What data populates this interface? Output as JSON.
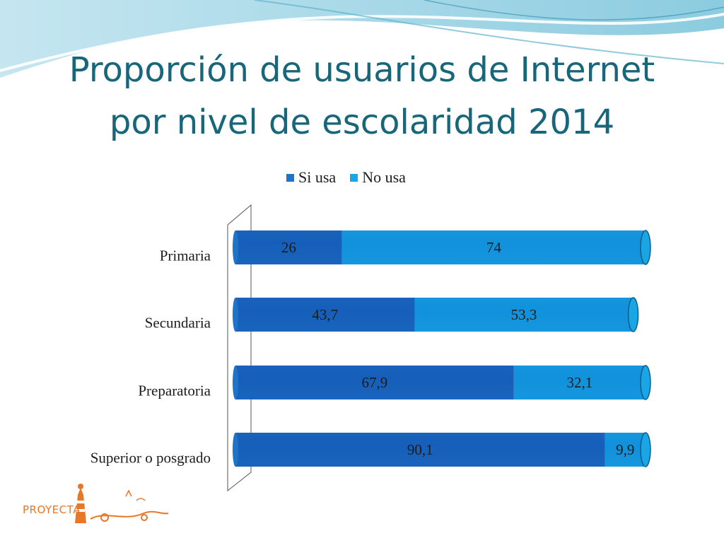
{
  "slide": {
    "title_line1": "Proporción de usuarios de Internet",
    "title_line2": "por nivel de escolaridad 2014",
    "logo_text": "PROYECTA"
  },
  "colors": {
    "title": "#17667a",
    "si_usa": "#1f74c8",
    "no_usa": "#1aa5e4",
    "accent_logo": "#e8772a"
  },
  "chart_data": {
    "type": "bar",
    "orientation": "horizontal",
    "stacked": true,
    "style": "3d-cylinder",
    "categories": [
      "Primaria",
      "Secundaria",
      "Preparatoria",
      "Superior o posgrado"
    ],
    "series": [
      {
        "name": "Si usa",
        "values": [
          26,
          43.7,
          67.9,
          90.1
        ],
        "labels": [
          "26",
          "43,7",
          "67,9",
          "90,1"
        ],
        "color": "#1f74c8"
      },
      {
        "name": "No usa",
        "values": [
          74,
          53.3,
          32.1,
          9.9
        ],
        "labels": [
          "74",
          "53,3",
          "32,1",
          "9,9"
        ],
        "color": "#1aa5e4"
      }
    ],
    "xlim": [
      0,
      100
    ],
    "legend_position": "top",
    "grid": false
  }
}
